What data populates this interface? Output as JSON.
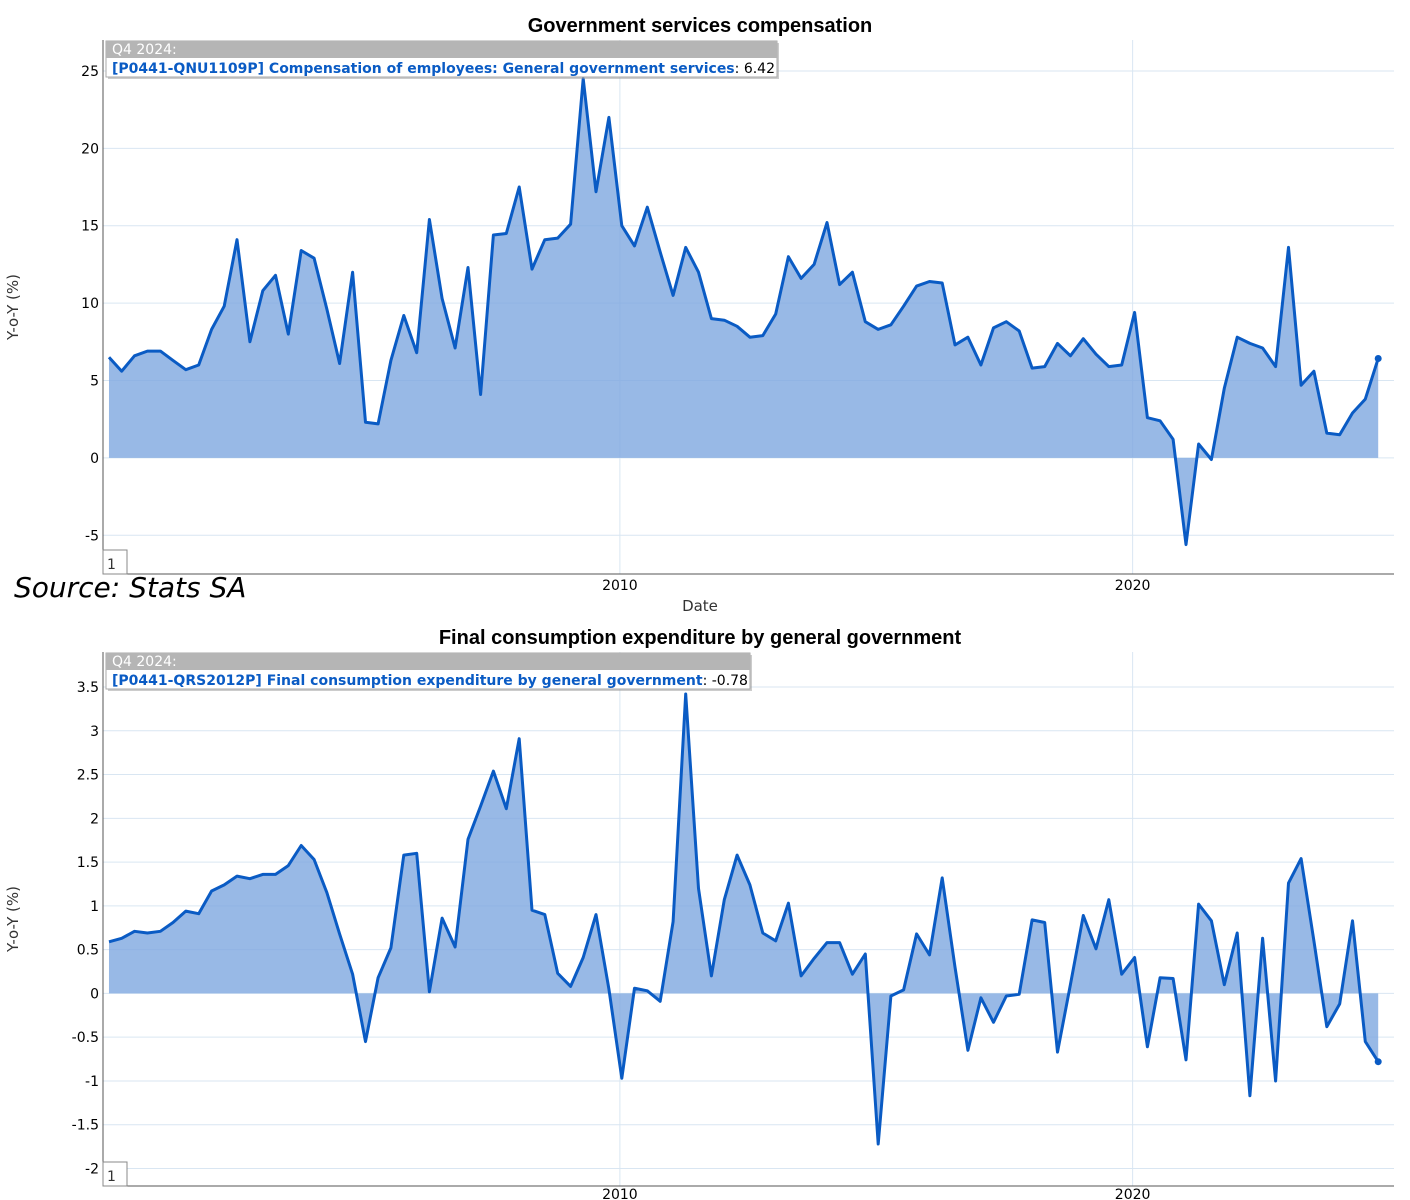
{
  "source_label": "Source: Stats SA",
  "colors": {
    "line": "#0a5bc4",
    "area": "#7ea8e0",
    "grid": "#d9e6f2",
    "tooltip_header": "#b5b5b5",
    "series_label": "#0a5bc4"
  },
  "chart_data": [
    {
      "type": "area",
      "title": "Government services compensation",
      "xlabel": "Date",
      "ylabel": "Y-o-Y (%)",
      "ylim": [
        -7.5,
        27
      ],
      "x_range": [
        "2000-01-01",
        "2024-12-31"
      ],
      "x_ticks": [
        {
          "label": "2010",
          "date": "2010-01-01"
        },
        {
          "label": "2020",
          "date": "2020-01-01"
        }
      ],
      "y_ticks": [
        -5,
        0,
        5,
        10,
        15,
        20,
        25
      ],
      "grid": true,
      "tooltip": {
        "period": "Q4 2024:",
        "series": "[P0441-QNU1109P] Compensation of employees: General government services",
        "value": ": 6.42"
      },
      "badge": "1",
      "x_start": "2000Q1",
      "frequency": "quarterly",
      "series": [
        {
          "values": [
            6.5,
            5.6,
            6.6,
            6.9,
            6.9,
            6.3,
            5.7,
            6.0,
            8.3,
            9.8,
            14.1,
            7.5,
            10.8,
            11.8,
            8.0,
            13.4,
            12.9,
            9.6,
            6.1,
            12.0,
            2.3,
            2.2,
            6.3,
            9.2,
            6.8,
            15.4,
            10.3,
            7.1,
            12.3,
            4.1,
            14.4,
            14.5,
            17.5,
            12.2,
            14.1,
            14.2,
            15.1,
            24.5,
            17.2,
            22.0,
            15.0,
            13.7,
            16.2,
            13.3,
            10.5,
            13.6,
            12.0,
            9.0,
            8.9,
            8.5,
            7.8,
            7.9,
            9.3,
            13.0,
            11.6,
            12.5,
            15.2,
            11.2,
            12.0,
            8.8,
            8.3,
            8.6,
            9.8,
            11.1,
            11.4,
            11.3,
            7.3,
            7.8,
            6.0,
            8.4,
            8.8,
            8.2,
            5.8,
            5.9,
            7.4,
            6.6,
            7.7,
            6.7,
            5.9,
            6.0,
            9.4,
            2.6,
            2.4,
            1.2,
            -5.6,
            0.9,
            -0.1,
            4.5,
            7.8,
            7.4,
            7.1,
            5.9,
            13.6,
            4.7,
            5.6,
            1.6,
            1.5,
            2.9,
            3.8,
            6.42
          ]
        }
      ]
    },
    {
      "type": "area",
      "title": "Final consumption expenditure by general government",
      "xlabel": "",
      "ylabel": "Y-o-Y (%)",
      "ylim": [
        -2.2,
        3.9
      ],
      "x_range": [
        "2000-01-01",
        "2024-12-31"
      ],
      "x_ticks": [
        {
          "label": "2010",
          "date": "2010-01-01"
        },
        {
          "label": "2020",
          "date": "2020-01-01"
        }
      ],
      "y_ticks": [
        -2,
        -1.5,
        -1,
        -0.5,
        0,
        0.5,
        1,
        1.5,
        2,
        2.5,
        3,
        3.5
      ],
      "grid": true,
      "tooltip": {
        "period": "Q4 2024:",
        "series": "[P0441-QRS2012P] Final consumption expenditure by general government",
        "value": ": -0.78"
      },
      "badge": "1",
      "x_start": "2000Q1",
      "frequency": "quarterly",
      "series": [
        {
          "values": [
            0.59,
            0.63,
            0.71,
            0.69,
            0.71,
            0.81,
            0.94,
            0.91,
            1.17,
            1.24,
            1.34,
            1.31,
            1.36,
            1.36,
            1.46,
            1.69,
            1.53,
            1.15,
            0.68,
            0.22,
            -0.55,
            0.18,
            0.52,
            1.58,
            1.6,
            0.02,
            0.86,
            0.53,
            1.76,
            2.14,
            2.54,
            2.11,
            2.91,
            0.95,
            0.9,
            0.23,
            0.08,
            0.41,
            0.9,
            0.05,
            -0.97,
            0.06,
            0.03,
            -0.09,
            0.82,
            3.42,
            1.2,
            0.2,
            1.07,
            1.58,
            1.24,
            0.69,
            0.6,
            1.03,
            0.2,
            0.4,
            0.58,
            0.58,
            0.22,
            0.45,
            -1.72,
            -0.03,
            0.04,
            0.68,
            0.44,
            1.32,
            0.3,
            -0.65,
            -0.05,
            -0.33,
            -0.03,
            -0.01,
            0.84,
            0.81,
            -0.67,
            0.1,
            0.89,
            0.51,
            1.07,
            0.22,
            0.41,
            -0.61,
            0.18,
            0.17,
            -0.76,
            1.02,
            0.83,
            0.1,
            0.69,
            -1.17,
            0.63,
            -1.0,
            1.26,
            1.54,
            0.6,
            -0.38,
            -0.12,
            0.83,
            -0.55,
            -0.78
          ]
        }
      ]
    }
  ]
}
